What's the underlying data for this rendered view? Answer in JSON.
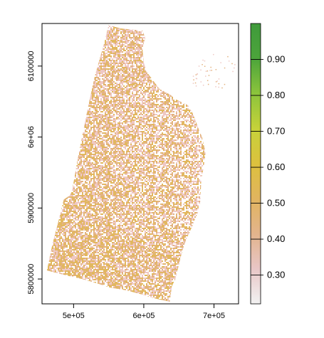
{
  "chart_data": {
    "type": "heatmap",
    "title": "",
    "xlabel": "",
    "ylabel": "",
    "xlim": [
      455000,
      735000
    ],
    "ylim": [
      5765000,
      6160000
    ],
    "x_ticks": [
      {
        "value": 500000,
        "label": "5e+05"
      },
      {
        "value": 600000,
        "label": "6e+05"
      },
      {
        "value": 700000,
        "label": "7e+05"
      }
    ],
    "y_ticks": [
      {
        "value": 5800000,
        "label": "5800000"
      },
      {
        "value": 5900000,
        "label": "5900000"
      },
      {
        "value": 6000000,
        "label": "6e+06"
      },
      {
        "value": 6100000,
        "label": "6100000"
      }
    ],
    "legend": {
      "placement": "right",
      "range": [
        0.22,
        1.0
      ],
      "ticks": [
        {
          "value": 0.3,
          "label": "0.30"
        },
        {
          "value": 0.4,
          "label": "0.40"
        },
        {
          "value": 0.5,
          "label": "0.50"
        },
        {
          "value": 0.6,
          "label": "0.60"
        },
        {
          "value": 0.7,
          "label": "0.70"
        },
        {
          "value": 0.8,
          "label": "0.80"
        },
        {
          "value": 0.9,
          "label": "0.90"
        }
      ],
      "color_stops": [
        "#f2f2f2",
        "#e8c6c6",
        "#e3b48c",
        "#e1b45f",
        "#ddc13e",
        "#c6d23a",
        "#8cc43c",
        "#4ca43b",
        "#3f9a3b"
      ]
    },
    "raster_colors": {
      "pink": "#efc8c4",
      "tan": "#e3b380",
      "gold": "#e2b85e"
    },
    "region_polygon": [
      [
        550000,
        6158000
      ],
      [
        567000,
        6153000
      ],
      [
        598000,
        6150000
      ],
      [
        602000,
        6140000
      ],
      [
        598000,
        6125000
      ],
      [
        600000,
        6105000
      ],
      [
        604000,
        6092000
      ],
      [
        622000,
        6068000
      ],
      [
        637000,
        6060000
      ],
      [
        648000,
        6052000
      ],
      [
        663000,
        6045000
      ],
      [
        670000,
        6033000
      ],
      [
        678000,
        6012000
      ],
      [
        683000,
        6000000
      ],
      [
        688000,
        5978000
      ],
      [
        685000,
        5955000
      ],
      [
        682000,
        5942000
      ],
      [
        680000,
        5900000
      ],
      [
        672000,
        5882000
      ],
      [
        668000,
        5872000
      ],
      [
        660000,
        5855000
      ],
      [
        655000,
        5840000
      ],
      [
        650000,
        5820000
      ],
      [
        645000,
        5800000
      ],
      [
        640000,
        5790000
      ],
      [
        637000,
        5768000
      ],
      [
        614000,
        5773000
      ],
      [
        598000,
        5778000
      ],
      [
        575000,
        5784000
      ],
      [
        552000,
        5788000
      ],
      [
        530000,
        5795000
      ],
      [
        512000,
        5800000
      ],
      [
        490000,
        5805000
      ],
      [
        462000,
        5812000
      ],
      [
        470000,
        5850000
      ],
      [
        478000,
        5880000
      ],
      [
        486000,
        5912000
      ],
      [
        495000,
        5918000
      ],
      [
        498000,
        5925000
      ],
      [
        505000,
        5965000
      ],
      [
        512000,
        6000000
      ],
      [
        520000,
        6040000
      ],
      [
        530000,
        6085000
      ],
      [
        543000,
        6130000
      ]
    ],
    "scatter_region": [
      [
        668000,
        6122000
      ],
      [
        730000,
        6070000
      ]
    ]
  }
}
